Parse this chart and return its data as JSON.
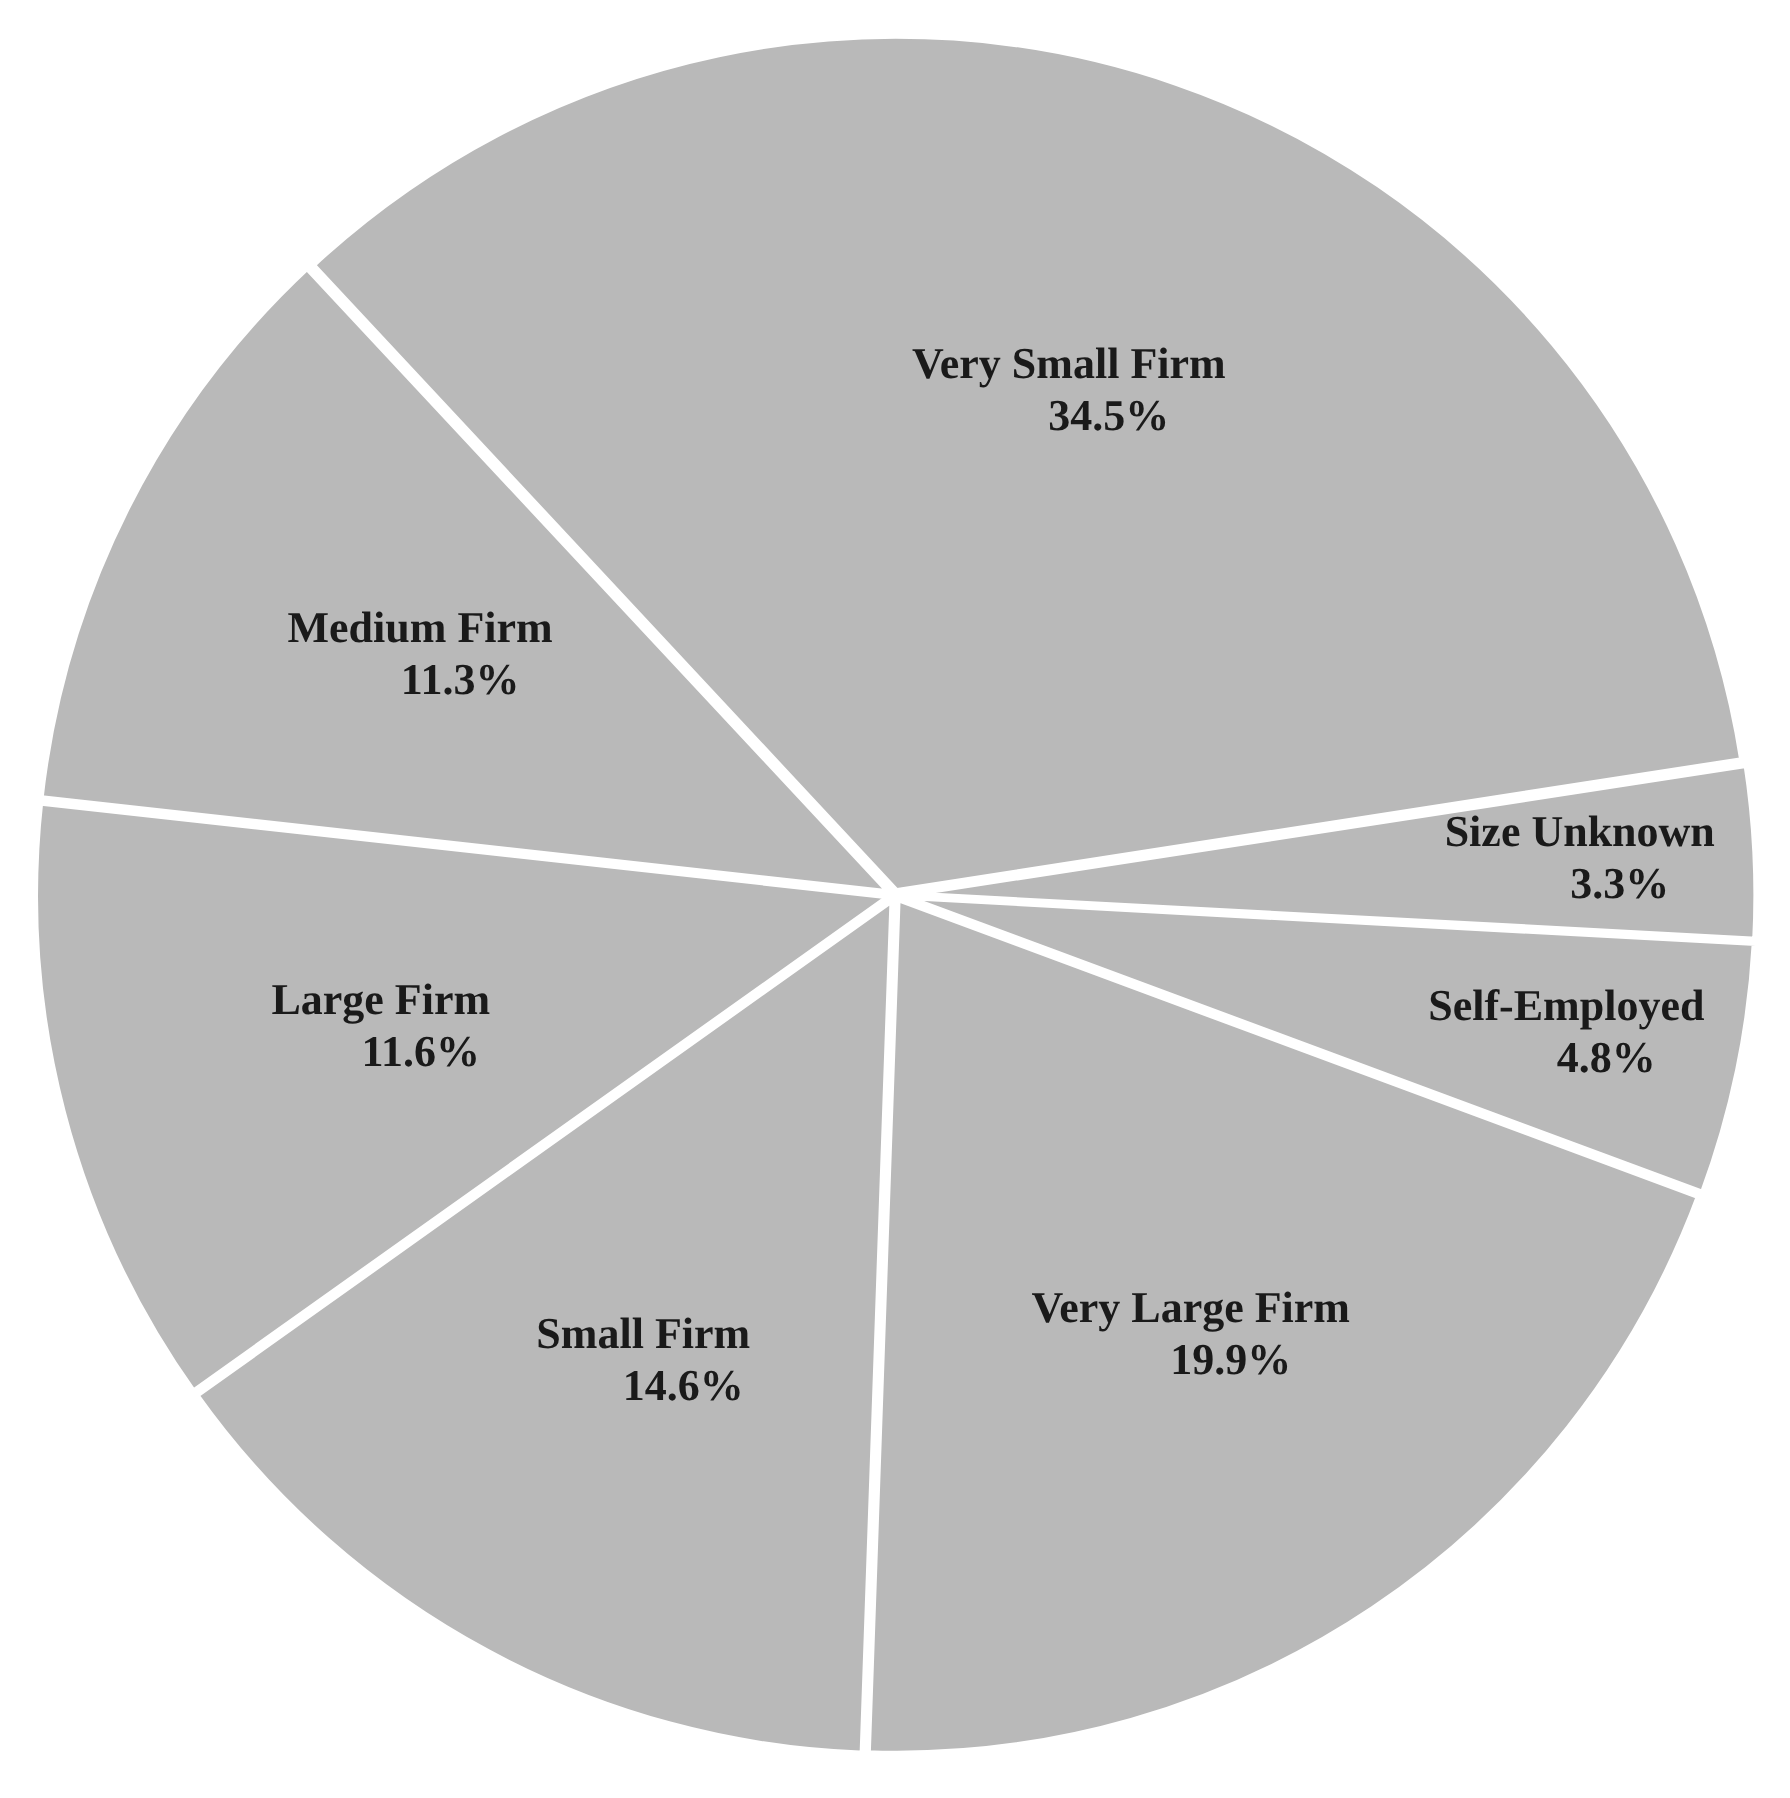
{
  "chart_data": {
    "type": "pie",
    "categories": [
      "Very Small Firm",
      "Size Unknown",
      "Self-Employed",
      "Very Large Firm",
      "Small Firm",
      "Large Firm",
      "Medium Firm"
    ],
    "values": [
      34.5,
      3.3,
      4.8,
      19.9,
      14.6,
      11.6,
      11.3
    ],
    "value_labels": [
      "34.5%",
      "3.3%",
      "4.8%",
      "19.9%",
      "14.6%",
      "11.6%",
      "11.3%"
    ],
    "colors": [
      "#b9b9b9",
      "#b9b9b9",
      "#b9b9b9",
      "#b9b9b9",
      "#b9b9b9",
      "#b9b9b9",
      "#b9b9b9"
    ],
    "legend": false
  }
}
